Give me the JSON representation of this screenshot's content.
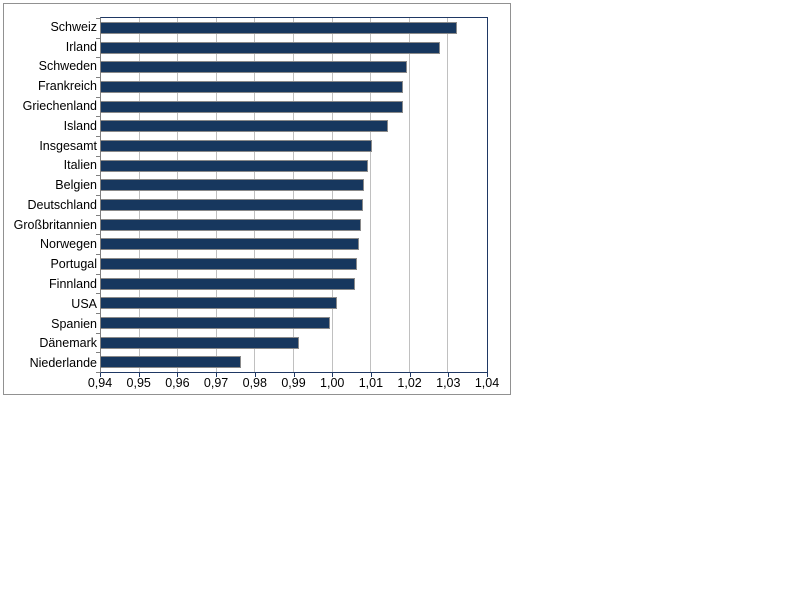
{
  "chart_data": {
    "type": "bar",
    "orientation": "horizontal",
    "title": "",
    "xlabel": "",
    "ylabel": "",
    "legend": "none",
    "grid": "vertical",
    "xlim": [
      0.94,
      1.04
    ],
    "x_tick_step": 0.01,
    "x_tick_labels": [
      "0,94",
      "0,95",
      "0,96",
      "0,97",
      "0,98",
      "0,99",
      "1,00",
      "1,01",
      "1,02",
      "1,03",
      "1,04"
    ],
    "categories": [
      "Schweiz",
      "Irland",
      "Schweden",
      "Frankreich",
      "Griechenland",
      "Island",
      "Insgesamt",
      "Italien",
      "Belgien",
      "Deutschland",
      "Großbritannien",
      "Norwegen",
      "Portugal",
      "Finnland",
      "USA",
      "Spanien",
      "Dänemark",
      "Niederlande"
    ],
    "values": [
      1.032,
      1.0275,
      1.019,
      1.018,
      1.018,
      1.014,
      1.01,
      1.009,
      1.008,
      1.0075,
      1.007,
      1.0065,
      1.006,
      1.0055,
      1.001,
      0.999,
      0.991,
      0.976
    ],
    "colors": {
      "bar_fill": "#17375E",
      "bar_border": "#8a8a8a",
      "gridline": "#C0C0C0",
      "plot_frame": "#1F3864",
      "y_axis_line": "#808080",
      "chart_border": "#919191",
      "background": "#FFFFFF",
      "text": "#000000"
    }
  }
}
